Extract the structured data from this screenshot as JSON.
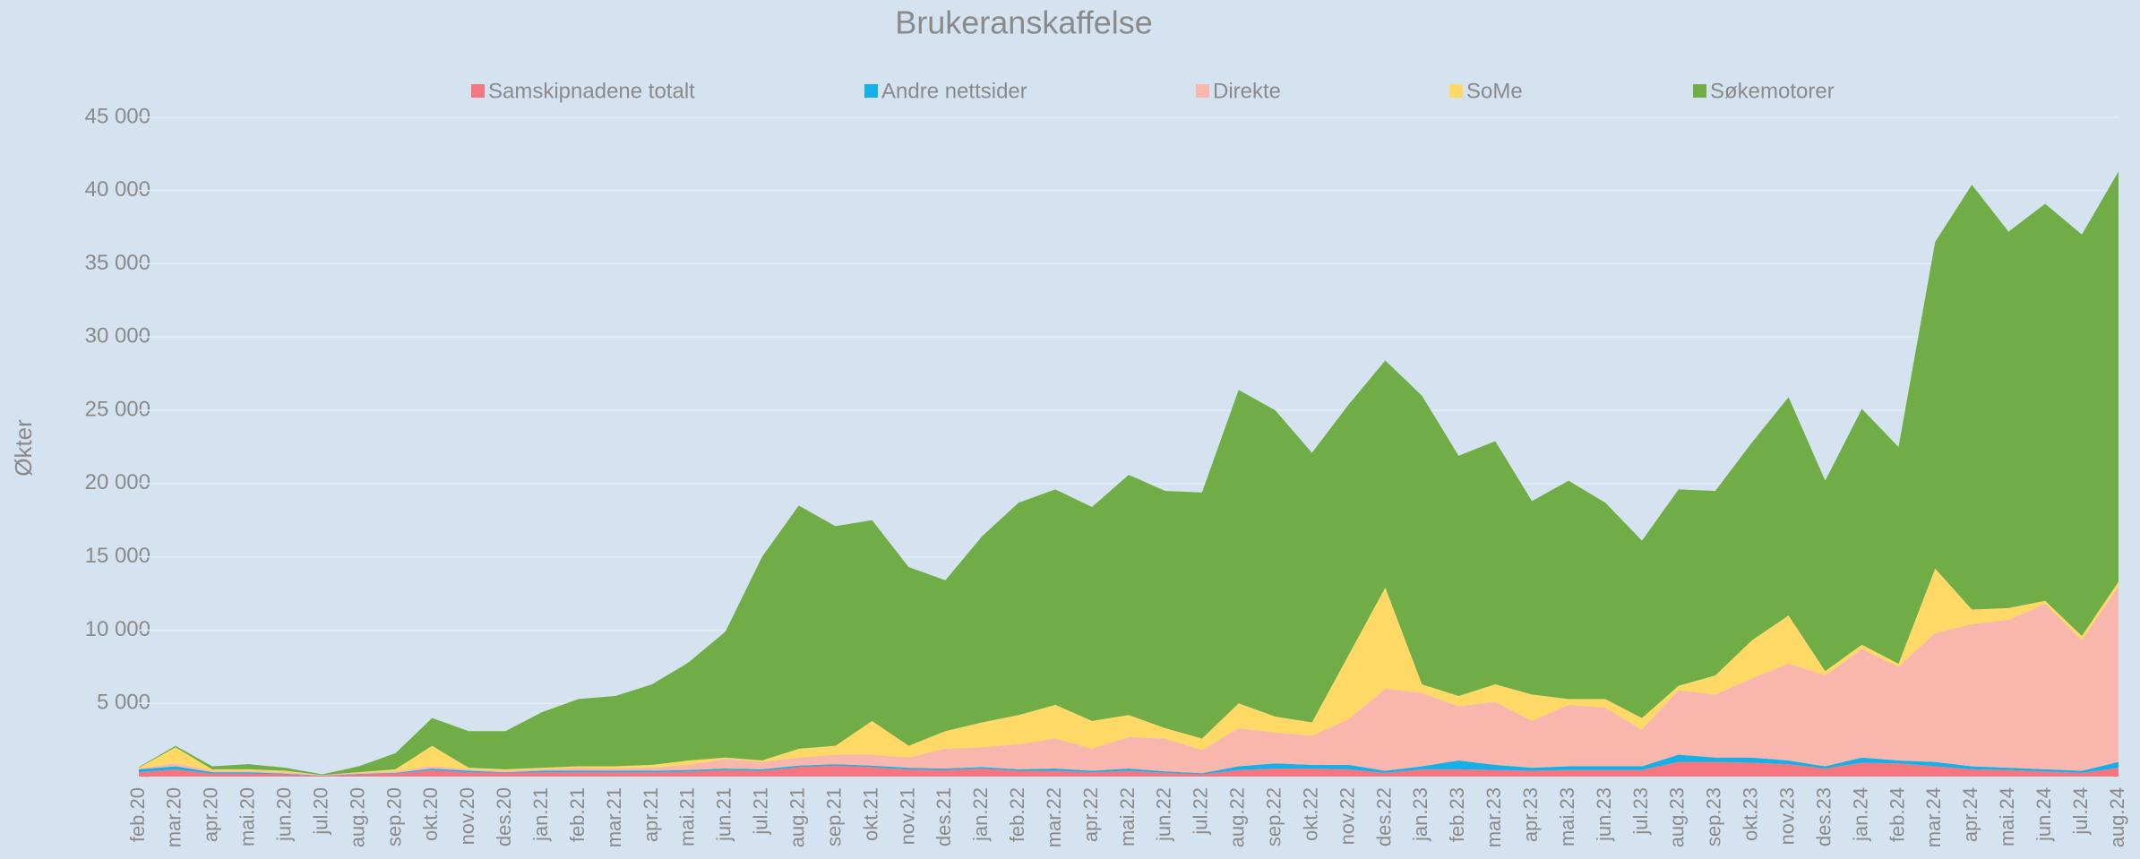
{
  "chart_data": {
    "type": "stacked_area",
    "title": "Brukeranskaffelse",
    "y_label": "Økter",
    "legend": "top",
    "grid": true,
    "categories": [
      "feb.20",
      "mar.20",
      "apr.20",
      "mai.20",
      "jun.20",
      "jul.20",
      "aug.20",
      "sep.20",
      "okt.20",
      "nov.20",
      "des.20",
      "jan.21",
      "feb.21",
      "mar.21",
      "apr.21",
      "mai.21",
      "jun.21",
      "jul.21",
      "aug.21",
      "sep.21",
      "okt.21",
      "nov.21",
      "des.21",
      "jan.22",
      "feb.22",
      "mar.22",
      "apr.22",
      "mai.22",
      "jun.22",
      "jul.22",
      "aug.22",
      "sep.22",
      "okt.22",
      "nov.22",
      "des.22",
      "jan.23",
      "feb.23",
      "mar.23",
      "apr.23",
      "mai.23",
      "jun.23",
      "jul.23",
      "aug.23",
      "sep.23",
      "okt.23",
      "nov.23",
      "des.23",
      "jan.24",
      "feb.24",
      "mar.24",
      "apr.24",
      "mai.24",
      "jun.24",
      "jul.24",
      "aug.24"
    ],
    "ylim": [
      0,
      45000
    ],
    "yticks": [
      {
        "value": 0,
        "label": "-"
      },
      {
        "value": 5000,
        "label": "5 000"
      },
      {
        "value": 10000,
        "label": "10 000"
      },
      {
        "value": 15000,
        "label": "15 000"
      },
      {
        "value": 20000,
        "label": "20 000"
      },
      {
        "value": 25000,
        "label": "25 000"
      },
      {
        "value": 30000,
        "label": "30 000"
      },
      {
        "value": 35000,
        "label": "35 000"
      },
      {
        "value": 40000,
        "label": "40 000"
      },
      {
        "value": 45000,
        "label": "45 000"
      }
    ],
    "series": [
      {
        "name": "Samskipnadene totalt",
        "color": "#f4777f",
        "values": [
          300,
          500,
          200,
          200,
          150,
          50,
          150,
          200,
          450,
          300,
          250,
          300,
          300,
          300,
          300,
          350,
          450,
          400,
          650,
          750,
          650,
          500,
          450,
          550,
          400,
          400,
          300,
          400,
          250,
          150,
          450,
          550,
          550,
          500,
          250,
          500,
          500,
          450,
          400,
          450,
          450,
          450,
          1000,
          1000,
          950,
          850,
          550,
          950,
          900,
          700,
          500,
          450,
          350,
          250,
          600
        ]
      },
      {
        "name": "Andre nettsider",
        "color": "#15b0e8",
        "values": [
          200,
          200,
          100,
          100,
          50,
          20,
          30,
          50,
          100,
          100,
          50,
          100,
          100,
          100,
          100,
          100,
          100,
          100,
          100,
          100,
          100,
          100,
          100,
          100,
          100,
          150,
          100,
          150,
          100,
          80,
          250,
          350,
          250,
          300,
          150,
          200,
          600,
          350,
          200,
          250,
          250,
          250,
          500,
          300,
          350,
          250,
          150,
          350,
          200,
          300,
          200,
          150,
          150,
          150,
          400
        ]
      },
      {
        "name": "Direkte",
        "color": "#f9b6ad",
        "values": [
          50,
          200,
          100,
          100,
          100,
          30,
          70,
          100,
          150,
          100,
          100,
          100,
          200,
          150,
          200,
          350,
          650,
          500,
          550,
          650,
          750,
          700,
          1350,
          1350,
          1700,
          2050,
          1500,
          2150,
          2250,
          1570,
          2600,
          2100,
          2000,
          3100,
          5600,
          5000,
          3700,
          4300,
          3200,
          4200,
          4000,
          2500,
          4400,
          4300,
          5400,
          6600,
          6200,
          7400,
          6400,
          8800,
          9700,
          10100,
          11300,
          8900,
          12000
        ]
      },
      {
        "name": "SoMe",
        "color": "#ffd966",
        "values": [
          50,
          1100,
          100,
          100,
          100,
          0,
          50,
          150,
          1400,
          100,
          100,
          100,
          100,
          150,
          200,
          300,
          100,
          100,
          600,
          600,
          2300,
          800,
          1200,
          1700,
          2000,
          2300,
          1900,
          1500,
          700,
          800,
          1700,
          1100,
          900,
          4400,
          6900,
          600,
          700,
          1200,
          1800,
          400,
          600,
          800,
          300,
          1300,
          2600,
          3300,
          300,
          300,
          200,
          4400,
          1000,
          800,
          200,
          300,
          300
        ]
      },
      {
        "name": "Søkemotorer",
        "color": "#70ad47",
        "values": [
          50,
          100,
          200,
          350,
          200,
          50,
          400,
          1100,
          1900,
          2500,
          2600,
          3800,
          4600,
          4800,
          5500,
          6700,
          8600,
          13900,
          16600,
          15000,
          13700,
          12200,
          10300,
          12700,
          14500,
          14700,
          14600,
          16400,
          16200,
          16800,
          21400,
          20900,
          18400,
          17100,
          15500,
          19700,
          16400,
          16600,
          13200,
          14900,
          13400,
          12100,
          13400,
          12600,
          13500,
          14900,
          13000,
          16100,
          14800,
          22300,
          29000,
          25700,
          27100,
          27400,
          28000
        ]
      }
    ]
  }
}
